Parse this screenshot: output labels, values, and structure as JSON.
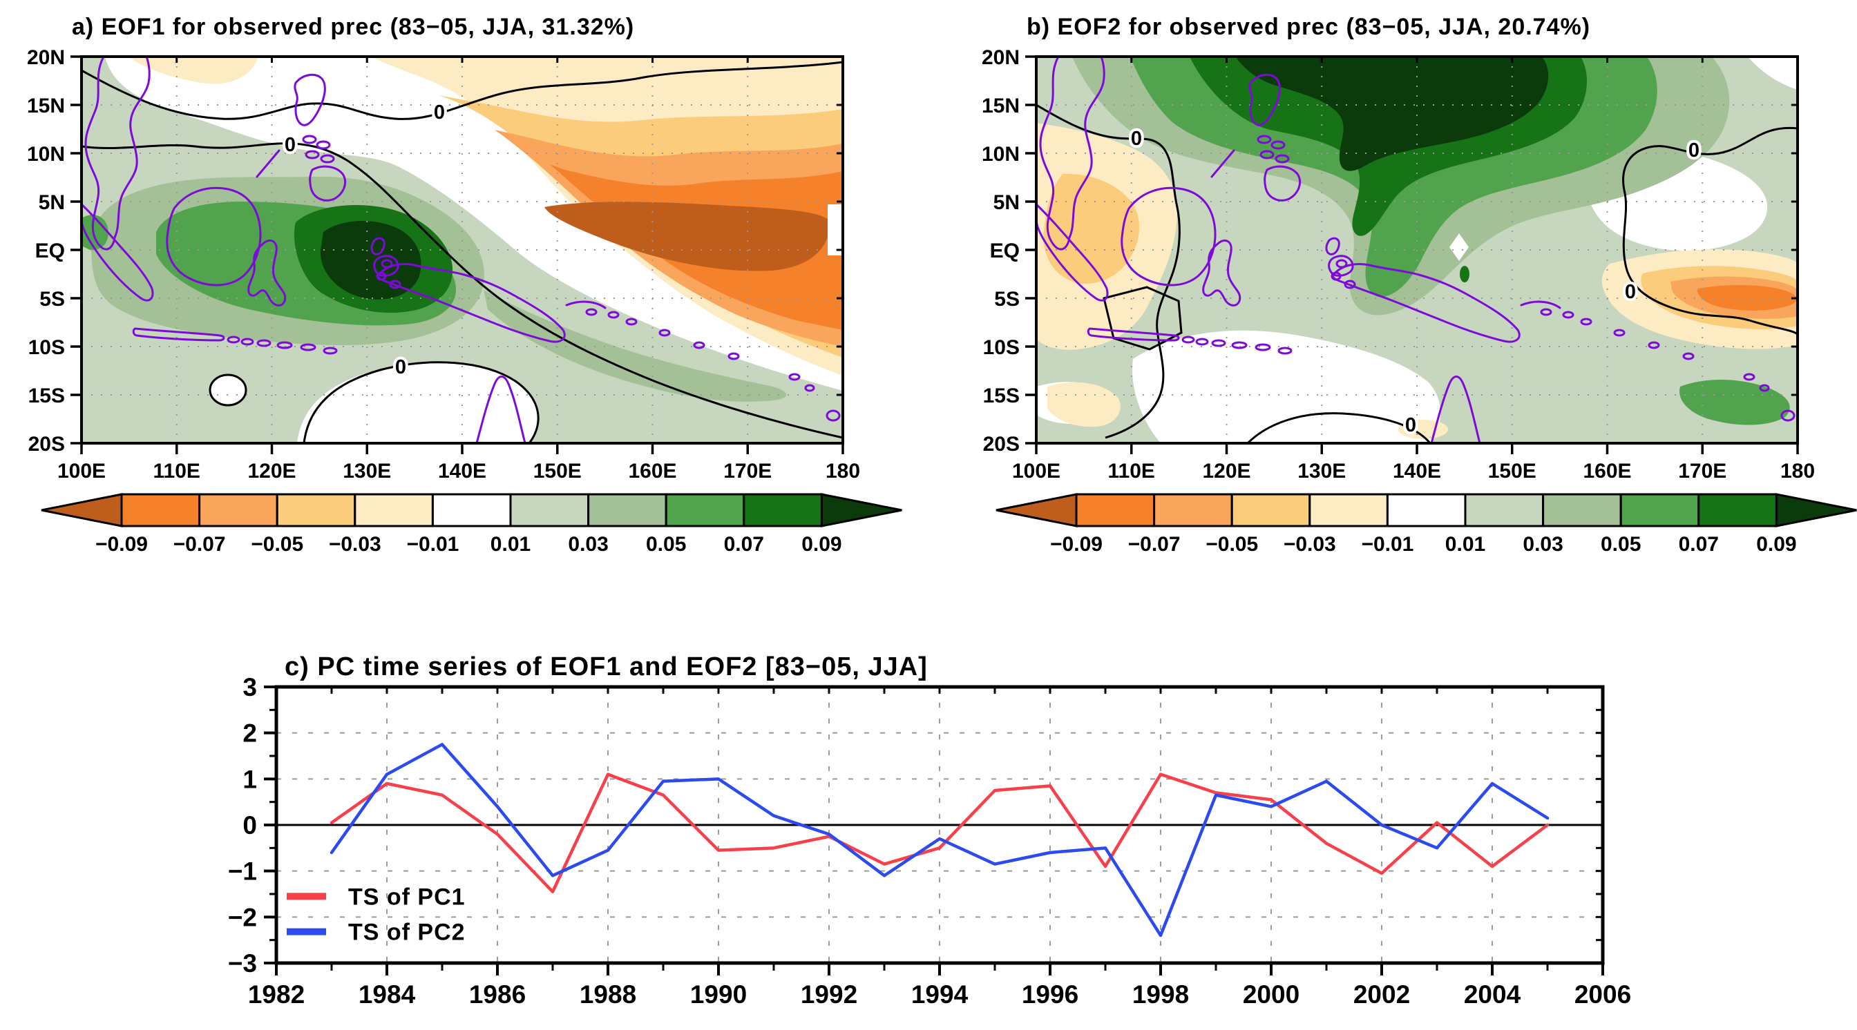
{
  "panel_a": {
    "title": "a) EOF1 for observed prec (83−05, JJA, 31.32%)",
    "x_ticks": [
      "100E",
      "110E",
      "120E",
      "130E",
      "140E",
      "150E",
      "160E",
      "170E",
      "180"
    ],
    "y_ticks": [
      "20N",
      "15N",
      "10N",
      "5N",
      "EQ",
      "5S",
      "10S",
      "15S",
      "20S"
    ],
    "zero_contour_label": "0"
  },
  "panel_b": {
    "title": "b) EOF2 for observed prec (83−05, JJA, 20.74%)",
    "x_ticks": [
      "100E",
      "110E",
      "120E",
      "130E",
      "140E",
      "150E",
      "160E",
      "170E",
      "180"
    ],
    "y_ticks": [
      "20N",
      "15N",
      "10N",
      "5N",
      "EQ",
      "5S",
      "10S",
      "15S",
      "20S"
    ],
    "zero_contour_label": "0"
  },
  "colorbar": {
    "tick_labels": [
      "−0.09",
      "−0.07",
      "−0.05",
      "−0.03",
      "−0.01",
      "0.01",
      "0.03",
      "0.05",
      "0.07",
      "0.09"
    ],
    "cell_colors": [
      "#F5822A",
      "#F9A55C",
      "#FBCC7B",
      "#FDEBC4",
      "#FFFFFF",
      "#C7D6BF",
      "#A3C096",
      "#52A34E",
      "#167416"
    ],
    "under_arrow_color": "#BF5E1C",
    "over_arrow_color": "#0B3B0B"
  },
  "panel_c": {
    "title": "c) PC time series of EOF1 and EOF2 [83−05, JJA]",
    "x_tick_labels": [
      "1982",
      "1984",
      "1986",
      "1988",
      "1990",
      "1992",
      "1994",
      "1996",
      "1998",
      "2000",
      "2002",
      "2004",
      "2006"
    ],
    "y_tick_labels": [
      "3",
      "2",
      "1",
      "0",
      "−1",
      "−2",
      "−3"
    ],
    "legend": [
      {
        "label": "TS of PC1",
        "color": "#F8404A"
      },
      {
        "label": "TS of PC2",
        "color": "#2B4BEF"
      }
    ]
  },
  "chart_data": [
    {
      "type": "contour_map",
      "panel": "a",
      "title": "a) EOF1 for observed prec (83-05, JJA, 31.32%)",
      "lon_range": [
        "100E",
        "180"
      ],
      "lat_range": [
        "20S",
        "20N"
      ],
      "contour_levels": [
        -0.09,
        -0.07,
        -0.05,
        -0.03,
        -0.01,
        0.01,
        0.03,
        0.05,
        0.07,
        0.09
      ],
      "zero_contour_labels": 3,
      "positive_center": {
        "lon": "122E-135E",
        "lat": "3S-5N",
        "value": "> 0.09"
      },
      "negative_center": {
        "lon": "148E-172E",
        "lat": "EQ-7N",
        "value": "< -0.09"
      },
      "coastline_color": "#7D0AD8"
    },
    {
      "type": "contour_map",
      "panel": "b",
      "title": "b) EOF2 for observed prec (83-05, JJA, 20.74%)",
      "lon_range": [
        "100E",
        "180"
      ],
      "lat_range": [
        "20S",
        "20N"
      ],
      "contour_levels": [
        -0.09,
        -0.07,
        -0.05,
        -0.03,
        -0.01,
        0.01,
        0.03,
        0.05,
        0.07,
        0.09
      ],
      "zero_contour_labels": 4,
      "positive_center": {
        "lon": "120E-155E",
        "lat": "13N-20N",
        "value": "> 0.09"
      },
      "negative_center": {
        "lon": "165E-176E",
        "lat": "2S-6S",
        "value": "-0.07 to -0.09"
      },
      "coastline_color": "#7D0AD8"
    },
    {
      "type": "line",
      "panel": "c",
      "title": "c) PC time series of EOF1 and EOF2 [83-05, JJA]",
      "xlabel": "",
      "ylabel": "",
      "xlim": [
        1982,
        2006
      ],
      "ylim": [
        -3,
        3
      ],
      "grid": "dotted",
      "zero_line": true,
      "legend_position": "inside lower-left",
      "x": [
        1983,
        1984,
        1985,
        1986,
        1987,
        1988,
        1989,
        1990,
        1991,
        1992,
        1993,
        1994,
        1995,
        1996,
        1997,
        1998,
        1999,
        2000,
        2001,
        2002,
        2003,
        2004,
        2005
      ],
      "series": [
        {
          "name": "TS of PC1",
          "color": "#F8404A",
          "values": [
            0.05,
            0.9,
            0.65,
            -0.2,
            -1.45,
            1.1,
            0.65,
            -0.55,
            -0.5,
            -0.25,
            -0.85,
            -0.5,
            0.75,
            0.85,
            -0.9,
            1.1,
            0.7,
            0.55,
            -0.4,
            -1.05,
            0.05,
            -0.9,
            0.0
          ]
        },
        {
          "name": "TS of PC2",
          "color": "#2B4BEF",
          "values": [
            -0.6,
            1.1,
            1.75,
            0.4,
            -1.1,
            -0.55,
            0.95,
            1.0,
            0.2,
            -0.2,
            -1.1,
            -0.3,
            -0.85,
            -0.6,
            -0.5,
            -2.4,
            0.65,
            0.4,
            0.95,
            0.0,
            -0.5,
            0.9,
            0.15
          ]
        }
      ]
    }
  ]
}
